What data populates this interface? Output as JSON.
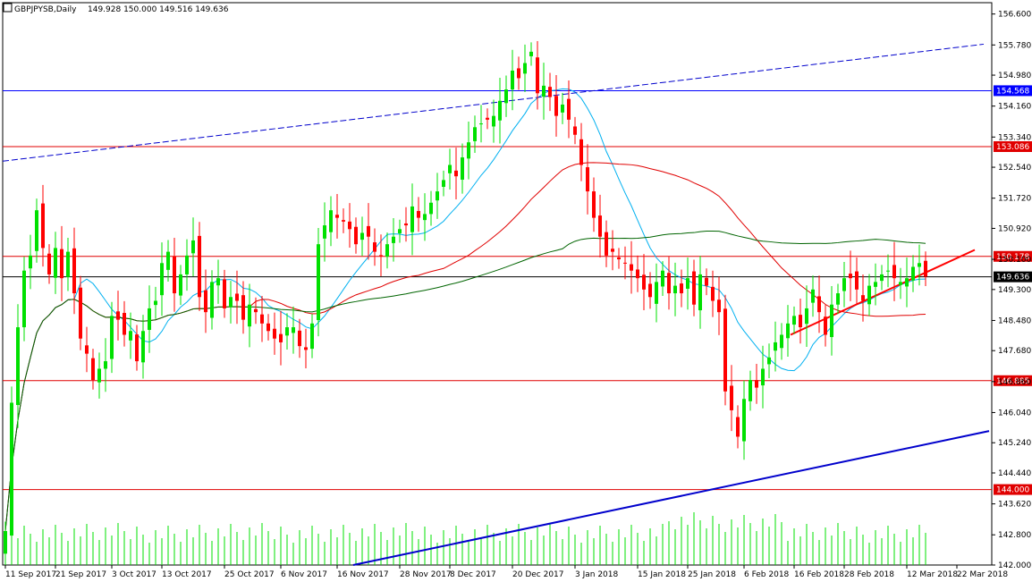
{
  "header": {
    "symbol": "GBPJPYSB,Daily",
    "ohlc": "149.928 150.000 149.516 149.636"
  },
  "chart_data": {
    "type": "candlestick",
    "ylim": [
      142.0,
      156.9
    ],
    "y_ticks": [
      "156.600",
      "155.780",
      "154.980",
      "154.160",
      "153.340",
      "152.540",
      "151.720",
      "150.920",
      "150.100",
      "149.300",
      "148.480",
      "147.680",
      "146.860",
      "146.040",
      "145.240",
      "144.440",
      "143.620",
      "142.800",
      "142.000"
    ],
    "x_ticks": [
      {
        "i": 0,
        "label": "11 Sep 2017"
      },
      {
        "i": 8,
        "label": "21 Sep 2017"
      },
      {
        "i": 17,
        "label": "3 Oct 2017"
      },
      {
        "i": 25,
        "label": "13 Oct 2017"
      },
      {
        "i": 35,
        "label": "25 Oct 2017"
      },
      {
        "i": 44,
        "label": "6 Nov 2017"
      },
      {
        "i": 53,
        "label": "16 Nov 2017"
      },
      {
        "i": 63,
        "label": "28 Nov 2017"
      },
      {
        "i": 71,
        "label": "8 Dec 2017"
      },
      {
        "i": 81,
        "label": "20 Dec 2017"
      },
      {
        "i": 91,
        "label": "3 Jan 2018"
      },
      {
        "i": 101,
        "label": "15 Jan 2018"
      },
      {
        "i": 109,
        "label": "25 Jan 2018"
      },
      {
        "i": 118,
        "label": "6 Feb 2018"
      },
      {
        "i": 126,
        "label": "16 Feb 2018"
      },
      {
        "i": 134,
        "label": "28 Feb 2018"
      },
      {
        "i": 144,
        "label": "12 Mar 2018"
      },
      {
        "i": 152,
        "label": "22 Mar 2018"
      }
    ],
    "up_color": "#00e000",
    "down_color": "#ff0000",
    "closes": [
      142.9,
      146.3,
      148.3,
      149.8,
      150.2,
      151.4,
      150.4,
      149.7,
      150.4,
      149.6,
      150.3,
      149.2,
      148.0,
      147.6,
      146.9,
      147.2,
      147.4,
      148.6,
      148.5,
      148.1,
      148.2,
      147.4,
      148.2,
      148.8,
      149.0,
      150.0,
      150.3,
      149.2,
      149.7,
      150.2,
      150.6,
      149.1,
      148.7,
      149.5,
      149.6,
      148.8,
      149.1,
      149.0,
      148.5,
      148.9,
      148.7,
      148.4,
      148.2,
      148.0,
      147.9,
      148.3,
      148.3,
      147.8,
      147.7,
      148.4,
      150.5,
      151.0,
      151.4,
      151.2,
      151.1,
      150.9,
      150.5,
      150.8,
      150.7,
      150.3,
      150.2,
      150.5,
      150.7,
      150.9,
      151.0,
      151.5,
      151.2,
      151.3,
      151.6,
      151.9,
      152.2,
      152.6,
      152.3,
      152.8,
      153.2,
      153.6,
      153.7,
      153.8,
      153.9,
      154.3,
      154.6,
      155.1,
      154.9,
      155.3,
      155.6,
      154.5,
      154.7,
      154.4,
      153.9,
      154.2,
      153.8,
      153.4,
      152.6,
      151.9,
      151.2,
      150.7,
      150.2,
      150.3,
      150.1,
      150.0,
      149.8,
      149.6,
      149.3,
      149.1,
      149.5,
      149.8,
      149.2,
      149.4,
      149.2,
      149.6,
      148.9,
      149.7,
      149.4,
      149.0,
      148.7,
      146.6,
      146.1,
      145.4,
      146.4,
      146.9,
      146.7,
      147.2,
      147.5,
      147.9,
      148.1,
      148.4,
      148.6,
      148.3,
      148.8,
      149.3,
      148.7,
      148.1,
      148.9,
      149.2,
      149.6,
      149.6,
      149.3,
      149.0,
      149.4,
      149.5,
      149.7,
      149.8,
      149.6,
      149.5,
      149.6,
      149.9,
      150.0,
      149.64
    ],
    "horizontal_levels": [
      {
        "value": 154.568,
        "label": "154.568",
        "color": "#0000ff"
      },
      {
        "value": 153.086,
        "label": "153.086",
        "color": "#e00000"
      },
      {
        "value": 150.178,
        "label": "150.178",
        "color": "#e00000"
      },
      {
        "value": 149.636,
        "label": "149.636",
        "color": "#000000"
      },
      {
        "value": 146.885,
        "label": "146.885",
        "color": "#e00000"
      },
      {
        "value": 144.0,
        "label": "144.000",
        "color": "#e00000"
      }
    ],
    "colors": {
      "ma_fast": "#00b0f0",
      "ma_mid": "#e00000",
      "ma_slow": "#006400",
      "trend_blue": "#0000cc",
      "trend_red": "#ff0000",
      "grid_up": "#00e000"
    }
  }
}
